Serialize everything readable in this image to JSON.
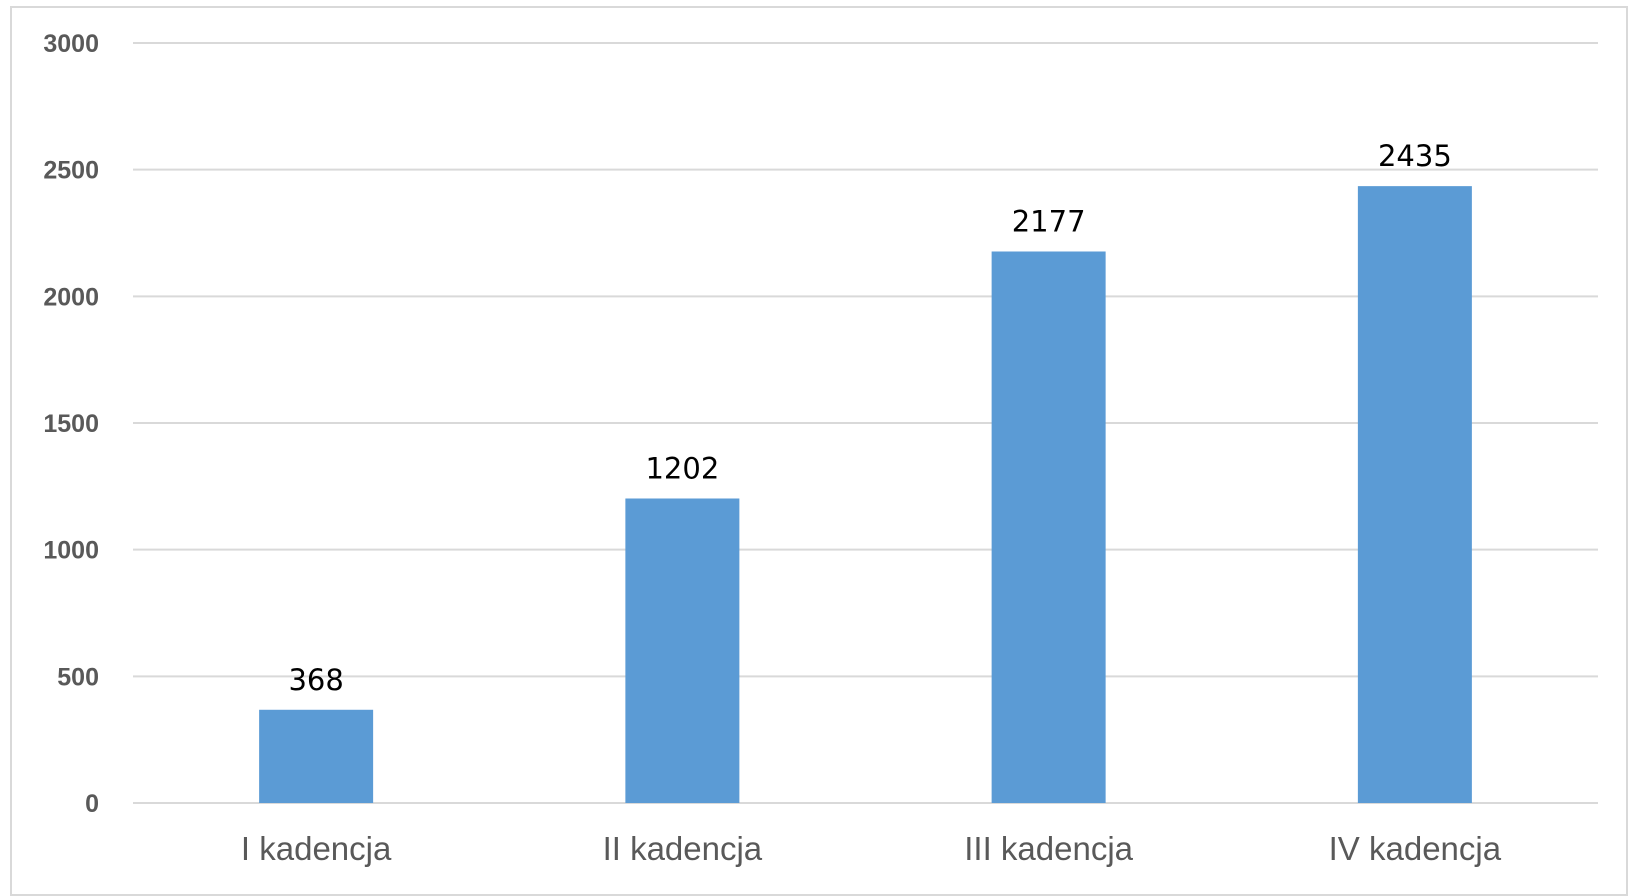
{
  "chart_data": {
    "type": "bar",
    "categories": [
      "I kadencja",
      "II kadencja",
      "III kadencja",
      "IV kadencja"
    ],
    "values": [
      368,
      1202,
      2177,
      2435
    ],
    "data_labels": [
      "368",
      "1202",
      "2177",
      "2435"
    ],
    "y_ticks": [
      "0",
      "500",
      "1000",
      "1500",
      "2000",
      "2500",
      "3000"
    ],
    "ylim": [
      0,
      3000
    ],
    "grid": true,
    "legend": "none",
    "bar_color": "#5b9bd5"
  }
}
